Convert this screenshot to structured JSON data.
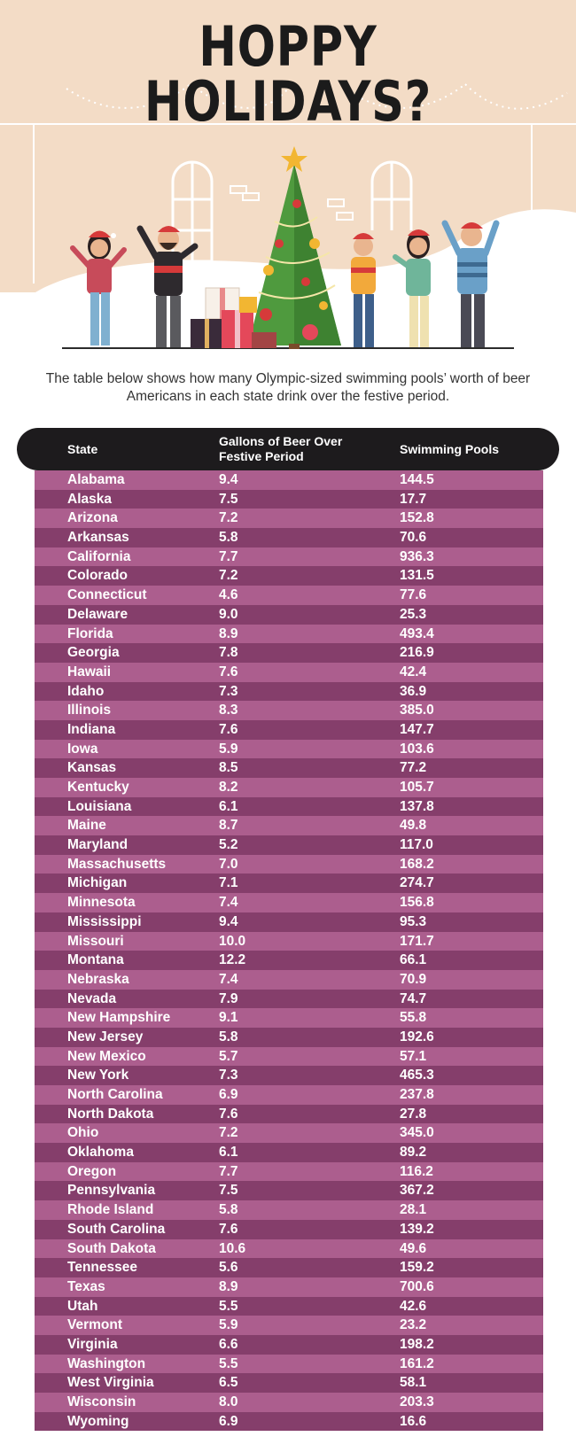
{
  "title": "HOPPY HOLIDAYS?",
  "intro": "The table below shows how many Olympic-sized swimming pools’ worth of beer Americans in each state drink over the festive period.",
  "colors": {
    "background_top": "#f3dcc6",
    "header_bar": "#1d1b1d",
    "row_light": "#ac5e8e",
    "row_dark": "#853e6b",
    "tree": "#4f9a3e",
    "hat_red": "#d63a3a"
  },
  "illustration": {
    "icons": [
      "garland-icon",
      "window-icon",
      "christmas-tree-icon",
      "star-icon",
      "gift-boxes-icon",
      "person-icon"
    ]
  },
  "table": {
    "headers": {
      "state": "State",
      "gallons": "Gallons of Beer Over Festive Period",
      "pools": "Swimming Pools"
    },
    "rows": [
      {
        "state": "Alabama",
        "gallons": "9.4",
        "pools": "144.5"
      },
      {
        "state": "Alaska",
        "gallons": "7.5",
        "pools": "17.7"
      },
      {
        "state": "Arizona",
        "gallons": "7.2",
        "pools": "152.8"
      },
      {
        "state": "Arkansas",
        "gallons": "5.8",
        "pools": "70.6"
      },
      {
        "state": "California",
        "gallons": "7.7",
        "pools": "936.3"
      },
      {
        "state": "Colorado",
        "gallons": "7.2",
        "pools": "131.5"
      },
      {
        "state": "Connecticut",
        "gallons": "4.6",
        "pools": "77.6"
      },
      {
        "state": "Delaware",
        "gallons": "9.0",
        "pools": "25.3"
      },
      {
        "state": "Florida",
        "gallons": "8.9",
        "pools": "493.4"
      },
      {
        "state": "Georgia",
        "gallons": "7.8",
        "pools": "216.9"
      },
      {
        "state": "Hawaii",
        "gallons": "7.6",
        "pools": "42.4"
      },
      {
        "state": "Idaho",
        "gallons": "7.3",
        "pools": "36.9"
      },
      {
        "state": "Illinois",
        "gallons": "8.3",
        "pools": "385.0"
      },
      {
        "state": "Indiana",
        "gallons": "7.6",
        "pools": "147.7"
      },
      {
        "state": "Iowa",
        "gallons": "5.9",
        "pools": "103.6"
      },
      {
        "state": "Kansas",
        "gallons": "8.5",
        "pools": "77.2"
      },
      {
        "state": "Kentucky",
        "gallons": "8.2",
        "pools": "105.7"
      },
      {
        "state": "Louisiana",
        "gallons": "6.1",
        "pools": "137.8"
      },
      {
        "state": "Maine",
        "gallons": "8.7",
        "pools": "49.8"
      },
      {
        "state": "Maryland",
        "gallons": "5.2",
        "pools": "117.0"
      },
      {
        "state": "Massachusetts",
        "gallons": "7.0",
        "pools": "168.2"
      },
      {
        "state": "Michigan",
        "gallons": "7.1",
        "pools": "274.7"
      },
      {
        "state": "Minnesota",
        "gallons": "7.4",
        "pools": "156.8"
      },
      {
        "state": "Mississippi",
        "gallons": "9.4",
        "pools": "95.3"
      },
      {
        "state": "Missouri",
        "gallons": "10.0",
        "pools": "171.7"
      },
      {
        "state": "Montana",
        "gallons": "12.2",
        "pools": "66.1"
      },
      {
        "state": "Nebraska",
        "gallons": "7.4",
        "pools": "70.9"
      },
      {
        "state": "Nevada",
        "gallons": "7.9",
        "pools": "74.7"
      },
      {
        "state": "New Hampshire",
        "gallons": "9.1",
        "pools": "55.8"
      },
      {
        "state": "New Jersey",
        "gallons": "5.8",
        "pools": "192.6"
      },
      {
        "state": "New Mexico",
        "gallons": "5.7",
        "pools": "57.1"
      },
      {
        "state": "New York",
        "gallons": "7.3",
        "pools": "465.3"
      },
      {
        "state": "North Carolina",
        "gallons": "6.9",
        "pools": "237.8"
      },
      {
        "state": "North Dakota",
        "gallons": "7.6",
        "pools": "27.8"
      },
      {
        "state": "Ohio",
        "gallons": "7.2",
        "pools": "345.0"
      },
      {
        "state": "Oklahoma",
        "gallons": "6.1",
        "pools": "89.2"
      },
      {
        "state": "Oregon",
        "gallons": "7.7",
        "pools": "116.2"
      },
      {
        "state": "Pennsylvania",
        "gallons": "7.5",
        "pools": "367.2"
      },
      {
        "state": "Rhode Island",
        "gallons": "5.8",
        "pools": "28.1"
      },
      {
        "state": "South Carolina",
        "gallons": "7.6",
        "pools": "139.2"
      },
      {
        "state": "South Dakota",
        "gallons": "10.6",
        "pools": "49.6"
      },
      {
        "state": "Tennessee",
        "gallons": "5.6",
        "pools": "159.2"
      },
      {
        "state": "Texas",
        "gallons": "8.9",
        "pools": "700.6"
      },
      {
        "state": "Utah",
        "gallons": "5.5",
        "pools": "42.6"
      },
      {
        "state": "Vermont",
        "gallons": "5.9",
        "pools": "23.2"
      },
      {
        "state": "Virginia",
        "gallons": "6.6",
        "pools": "198.2"
      },
      {
        "state": "Washington",
        "gallons": "5.5",
        "pools": "161.2"
      },
      {
        "state": "West Virginia",
        "gallons": "6.5",
        "pools": "58.1"
      },
      {
        "state": "Wisconsin",
        "gallons": "8.0",
        "pools": "203.3"
      },
      {
        "state": "Wyoming",
        "gallons": "6.9",
        "pools": "16.6"
      }
    ]
  }
}
